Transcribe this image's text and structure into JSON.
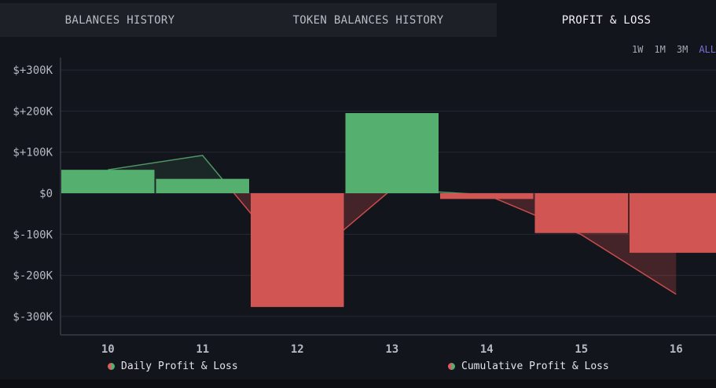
{
  "tabs": [
    {
      "label": "BALANCES HISTORY",
      "active": false
    },
    {
      "label": "TOKEN BALANCES HISTORY",
      "active": false
    },
    {
      "label": "PROFIT & LOSS",
      "active": true
    }
  ],
  "ranges": [
    {
      "label": "1W",
      "active": false
    },
    {
      "label": "1M",
      "active": false
    },
    {
      "label": "3M",
      "active": false
    },
    {
      "label": "ALL",
      "active": true
    }
  ],
  "legend": {
    "daily": "Daily Profit & Loss",
    "cumulative": "Cumulative Profit & Loss"
  },
  "colors": {
    "positive": "#55b06f",
    "negative": "#d15553",
    "line_positive": "#4f9766",
    "line_negative": "#c94c4c",
    "grid": "#262933",
    "axis_text": "#b7bac3",
    "active_range": "#7b6fd6"
  },
  "chart_data": {
    "type": "bar",
    "categories": [
      "10",
      "11",
      "12",
      "13",
      "14",
      "15",
      "16"
    ],
    "series": [
      {
        "name": "Daily Profit & Loss",
        "values": [
          57000,
          35000,
          -277000,
          195000,
          -14000,
          -97000,
          -145000
        ]
      },
      {
        "name": "Cumulative Profit & Loss",
        "values": [
          57000,
          92000,
          -185000,
          10000,
          -4000,
          -101000,
          -246000
        ]
      }
    ],
    "y_ticks": [
      300000,
      200000,
      100000,
      0,
      -100000,
      -200000,
      -300000
    ],
    "y_tick_labels": [
      "$+300K",
      "$+200K",
      "$+100K",
      "$0",
      "$-100K",
      "$-200K",
      "$-300K"
    ],
    "ylim": [
      -345000,
      330000
    ],
    "grid": true,
    "legend_position": "bottom"
  }
}
